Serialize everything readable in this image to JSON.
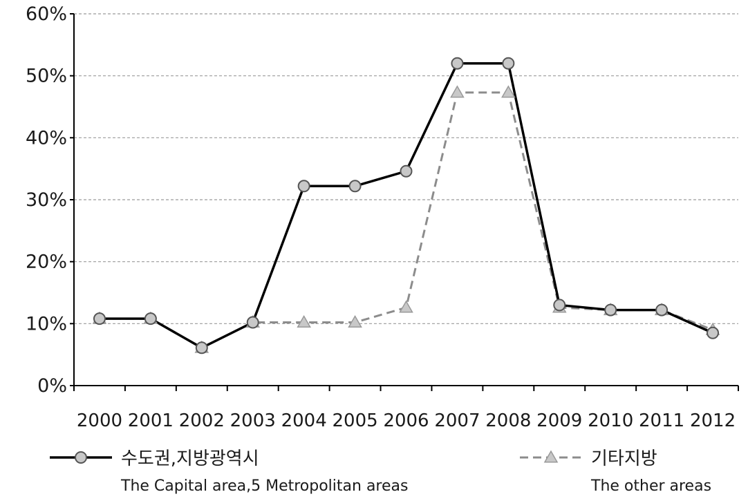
{
  "chart_data": {
    "type": "line",
    "categories": [
      "2000",
      "2001",
      "2002",
      "2003",
      "2004",
      "2005",
      "2006",
      "2007",
      "2008",
      "2009",
      "2010",
      "2011",
      "2012"
    ],
    "ylim": [
      0,
      60
    ],
    "y_ticks": [
      "0%",
      "10%",
      "20%",
      "30%",
      "40%",
      "50%",
      "60%"
    ],
    "y_tick_values": [
      0,
      10,
      20,
      30,
      40,
      50,
      60
    ],
    "grid": true,
    "legend_position": "bottom",
    "series": [
      {
        "name": "수도권,지방광역시",
        "name_en": "The Capital area,5 Metropolitan areas",
        "values": [
          10.8,
          10.8,
          6.1,
          10.2,
          32.2,
          32.2,
          34.6,
          52.0,
          52.0,
          13.0,
          12.2,
          12.2,
          8.5
        ],
        "color": "#000000",
        "marker": "circle",
        "marker_fill": "#c8c8c8",
        "line_style": "solid"
      },
      {
        "name": "기타지방",
        "name_en": "The other areas",
        "values": [
          10.8,
          10.8,
          6.1,
          10.2,
          10.2,
          10.2,
          12.6,
          47.3,
          47.3,
          12.6,
          12.2,
          12.2,
          9.0
        ],
        "color": "#8c8c8c",
        "marker": "triangle",
        "marker_fill": "#c8c8c8",
        "line_style": "dashed"
      }
    ]
  }
}
